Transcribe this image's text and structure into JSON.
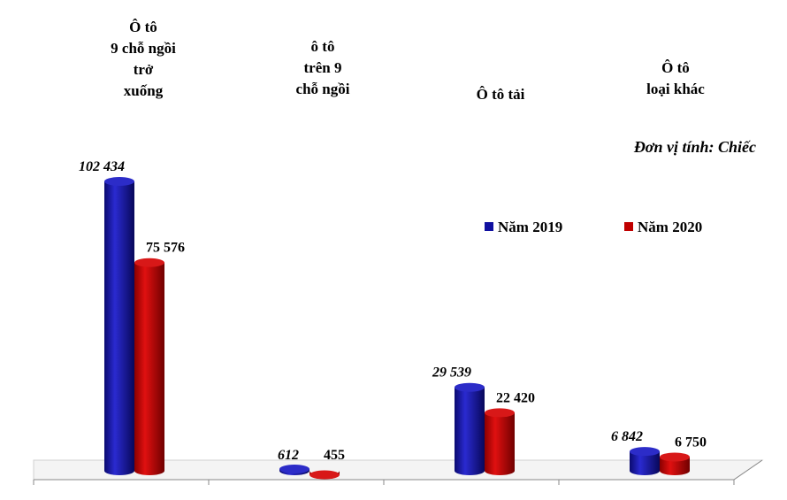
{
  "chart_data": {
    "type": "bar",
    "categories": [
      [
        "Ô tô",
        "9 chỗ ngồi",
        "trở",
        "xuống"
      ],
      [
        "ô tô",
        "trên 9",
        "chỗ ngồi"
      ],
      [
        "Ô tô tải"
      ],
      [
        "Ô tô",
        "loại khác"
      ]
    ],
    "series": [
      {
        "name": "Năm 2019",
        "color": "#1010a0",
        "values": [
          102434,
          612,
          29539,
          6842
        ],
        "labels": [
          "102 434",
          "612",
          "29 539",
          "6 842"
        ]
      },
      {
        "name": "Năm 2020",
        "color": "#c00000",
        "values": [
          75576,
          455,
          22420,
          6750
        ],
        "labels": [
          "75 576",
          "455",
          "22 420",
          "6 750"
        ]
      }
    ],
    "unit_note": "Đơn vị tính: Chiếc",
    "ylim": [
      0,
      110000
    ],
    "legend_position": "right"
  }
}
